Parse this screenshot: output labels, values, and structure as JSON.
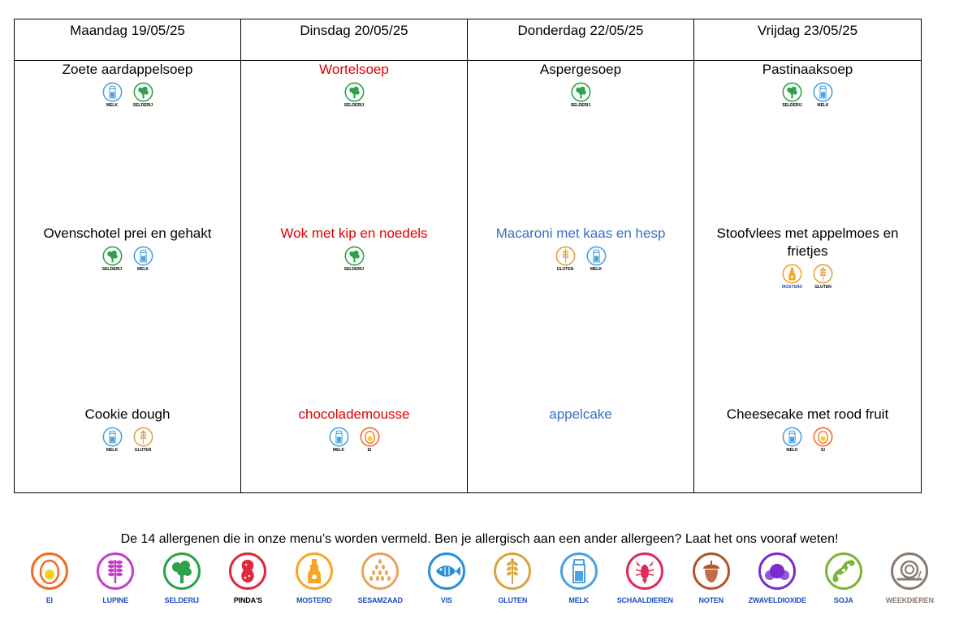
{
  "days": [
    {
      "header": "Maandag 19/05/25",
      "soup": {
        "name": "Zoete aardappelsoep",
        "color": "black",
        "allergens": [
          "melk",
          "selderij"
        ]
      },
      "main": {
        "name": "Ovenschotel prei en gehakt",
        "color": "black",
        "allergens": [
          "selderij",
          "melk"
        ]
      },
      "dessert": {
        "name": "Cookie dough",
        "color": "black",
        "allergens": [
          "melk",
          "gluten"
        ]
      }
    },
    {
      "header": "Dinsdag 20/05/25",
      "soup": {
        "name": "Wortelsoep",
        "color": "red",
        "allergens": [
          "selderij"
        ]
      },
      "main": {
        "name": "Wok met kip en noedels",
        "color": "red",
        "allergens": [
          "selderij"
        ]
      },
      "dessert": {
        "name": "chocolademousse",
        "color": "red",
        "allergens": [
          "melk",
          "ei"
        ]
      }
    },
    {
      "header": "Donderdag 22/05/25",
      "soup": {
        "name": "Aspergesoep",
        "color": "black",
        "allergens": [
          "selderij"
        ]
      },
      "main": {
        "name": "Macaroni met kaas en hesp",
        "color": "blue",
        "allergens": [
          "gluten",
          "melk"
        ]
      },
      "dessert": {
        "name": "appelcake",
        "color": "blue",
        "allergens": []
      }
    },
    {
      "header": "Vrijdag 23/05/25",
      "soup": {
        "name": "Pastinaaksoep",
        "color": "black",
        "allergens": [
          "selderij",
          "melk"
        ]
      },
      "main": {
        "name": "Stoofvlees met appelmoes en frietjes",
        "color": "black",
        "allergens": [
          "mosterd",
          "gluten"
        ]
      },
      "dessert": {
        "name": "Cheesecake met rood fruit",
        "color": "black",
        "allergens": [
          "melk",
          "ei"
        ]
      }
    }
  ],
  "small_labels": {
    "melk": "MELK",
    "selderij": "SELDERIJ",
    "gluten": "GLUTEN",
    "mosterd": "MOSTERD",
    "ei": "EI"
  },
  "legend": {
    "title": "De 14 allergenen die in onze menu’s worden vermeld. Ben je allergisch aan een ander allergeen? Laat het ons vooraf weten!",
    "items": [
      {
        "key": "ei",
        "label": "EI",
        "color": "#f26a21",
        "icon": "egg-icon"
      },
      {
        "key": "lupine",
        "label": "LUPINE",
        "color": "#c33fc8",
        "icon": "lupine-icon"
      },
      {
        "key": "selderij",
        "label": "SELDERIJ",
        "color": "#2aa34a",
        "icon": "celery-icon"
      },
      {
        "key": "pindas",
        "label": "PINDA'S",
        "color": "#e0283c",
        "icon": "peanut-icon"
      },
      {
        "key": "mosterd",
        "label": "MOSTERD",
        "color": "#f5a623",
        "icon": "mustard-icon"
      },
      {
        "key": "sesamzaad",
        "label": "SESAMZAAD",
        "color": "#e8a35c",
        "icon": "sesame-icon"
      },
      {
        "key": "vis",
        "label": "VIS",
        "color": "#2a8fd6",
        "icon": "fish-icon"
      },
      {
        "key": "gluten",
        "label": "GLUTEN",
        "color": "#d9a441",
        "icon": "wheat-icon"
      },
      {
        "key": "melk",
        "label": "MELK",
        "color": "#4aa3e0",
        "icon": "milk-icon"
      },
      {
        "key": "schaaldieren",
        "label": "SCHAALDIEREN",
        "color": "#e0285a",
        "icon": "lobster-icon"
      },
      {
        "key": "noten",
        "label": "NOTEN",
        "color": "#b5542b",
        "icon": "nut-icon"
      },
      {
        "key": "zwaveldioxide",
        "label": "ZWAVELDIOXIDE",
        "color": "#7a2ccf",
        "icon": "molecule-icon"
      },
      {
        "key": "soja",
        "label": "SOJA",
        "color": "#7ab535",
        "icon": "soy-icon"
      },
      {
        "key": "weekdieren",
        "label": "WEEKDIEREN",
        "color": "#8a7a70",
        "icon": "snail-icon"
      }
    ]
  },
  "colors": {
    "red": "#e00000",
    "blue": "#3a6fc2",
    "black": "#000000"
  }
}
